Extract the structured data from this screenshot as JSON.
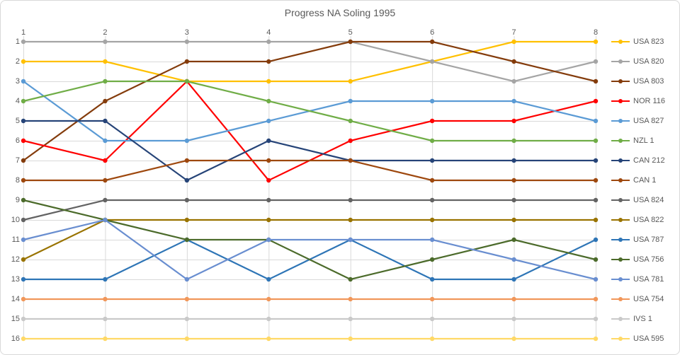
{
  "title": "Progress NA Soling 1995",
  "axes": {
    "x_ticks": [
      "1",
      "2",
      "3",
      "4",
      "5",
      "6",
      "7",
      "8"
    ],
    "y_ticks": [
      "1",
      "2",
      "3",
      "4",
      "5",
      "6",
      "7",
      "8",
      "9",
      "10",
      "11",
      "12",
      "13",
      "14",
      "15",
      "16"
    ]
  },
  "colors": {
    "grid": "#D9D9D9",
    "text": "#595959",
    "border": "#D9D9D9",
    "background": "#FFFFFF"
  },
  "chart_data": {
    "type": "line",
    "title": "Progress NA Soling 1995",
    "xlabel": "",
    "ylabel": "",
    "x": [
      1,
      2,
      3,
      4,
      5,
      6,
      7,
      8
    ],
    "y_axis": {
      "min": 1,
      "max": 16,
      "reversed": true
    },
    "x_axis_position": "top",
    "grid": true,
    "legend_position": "right",
    "marker": "circle",
    "series": [
      {
        "name": "USA 823",
        "color": "#FFC000",
        "values": [
          2,
          2,
          3,
          3,
          3,
          2,
          1,
          1
        ]
      },
      {
        "name": "USA 820",
        "color": "#A5A5A5",
        "values": [
          1,
          1,
          1,
          1,
          1,
          2,
          3,
          2
        ]
      },
      {
        "name": "USA 803",
        "color": "#843C0C",
        "values": [
          7,
          4,
          2,
          2,
          1,
          1,
          2,
          3
        ]
      },
      {
        "name": "NOR 116",
        "color": "#FF0000",
        "values": [
          6,
          7,
          3,
          8,
          6,
          5,
          5,
          4
        ]
      },
      {
        "name": "USA 827",
        "color": "#5B9BD5",
        "values": [
          3,
          6,
          6,
          5,
          4,
          4,
          4,
          5
        ]
      },
      {
        "name": "NZL 1",
        "color": "#70AD47",
        "values": [
          4,
          3,
          3,
          4,
          5,
          6,
          6,
          6
        ]
      },
      {
        "name": "CAN 212",
        "color": "#264478",
        "values": [
          5,
          5,
          8,
          6,
          7,
          7,
          7,
          7
        ]
      },
      {
        "name": "CAN 1",
        "color": "#9E480E",
        "values": [
          8,
          8,
          7,
          7,
          7,
          8,
          8,
          8
        ]
      },
      {
        "name": "USA 824",
        "color": "#636363",
        "values": [
          10,
          9,
          9,
          9,
          9,
          9,
          9,
          9
        ]
      },
      {
        "name": "USA 822",
        "color": "#997300",
        "values": [
          12,
          10,
          10,
          10,
          10,
          10,
          10,
          10
        ]
      },
      {
        "name": "USA 787",
        "color": "#2E75B6",
        "values": [
          13,
          13,
          11,
          13,
          11,
          13,
          13,
          11
        ]
      },
      {
        "name": "USA 756",
        "color": "#4C6B2B",
        "values": [
          9,
          10,
          11,
          11,
          13,
          12,
          11,
          12
        ]
      },
      {
        "name": "USA 781",
        "color": "#698ED0",
        "values": [
          11,
          10,
          13,
          11,
          11,
          11,
          12,
          13
        ]
      },
      {
        "name": "USA 754",
        "color": "#F1975A",
        "values": [
          14,
          14,
          14,
          14,
          14,
          14,
          14,
          14
        ]
      },
      {
        "name": "IVS 1",
        "color": "#C9C9C9",
        "values": [
          15,
          15,
          15,
          15,
          15,
          15,
          15,
          15
        ]
      },
      {
        "name": "USA 595",
        "color": "#FFD966",
        "values": [
          16,
          16,
          16,
          16,
          16,
          16,
          16,
          16
        ]
      }
    ]
  }
}
